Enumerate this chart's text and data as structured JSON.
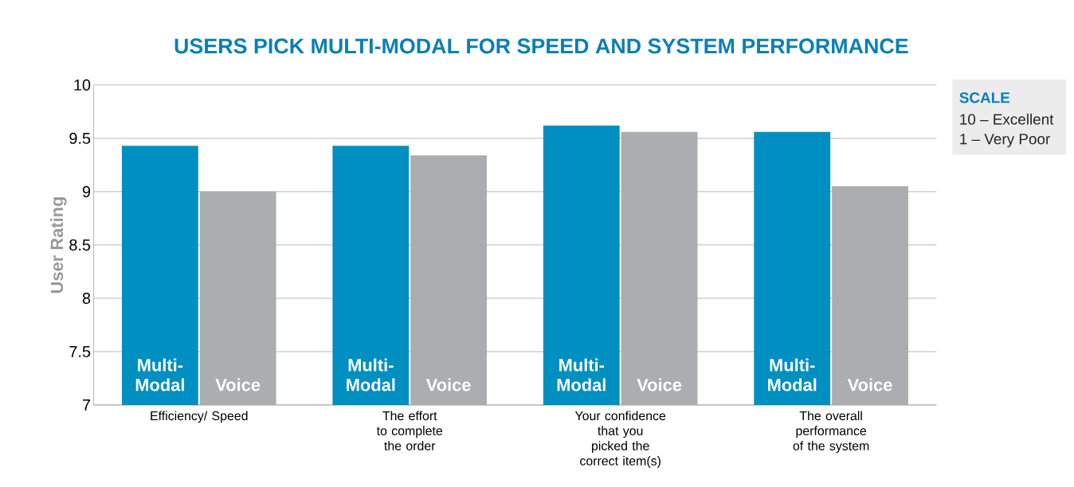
{
  "chart_data": {
    "type": "bar",
    "title": "USERS PICK MULTI-MODAL FOR SPEED AND SYSTEM PERFORMANCE",
    "ylabel": "User Rating",
    "categories": [
      "Efficiency/ Speed",
      "The effort to complete the order",
      "Your confidence that you picked the correct item(s)",
      "The overall performance of the system"
    ],
    "series": [
      {
        "name": "Multi-Modal",
        "color": "#008fc1",
        "values": [
          9.43,
          9.43,
          9.62,
          9.56
        ]
      },
      {
        "name": "Voice",
        "color": "#abadb0",
        "values": [
          9.0,
          9.34,
          9.56,
          9.05
        ]
      }
    ],
    "ylim": [
      7,
      10
    ],
    "yticks": [
      7,
      7.5,
      8,
      8.5,
      9,
      9.5,
      10
    ],
    "grid": "y",
    "annotations": [
      "SCALE",
      "10 – Excellent",
      "1 – Very Poor"
    ]
  }
}
